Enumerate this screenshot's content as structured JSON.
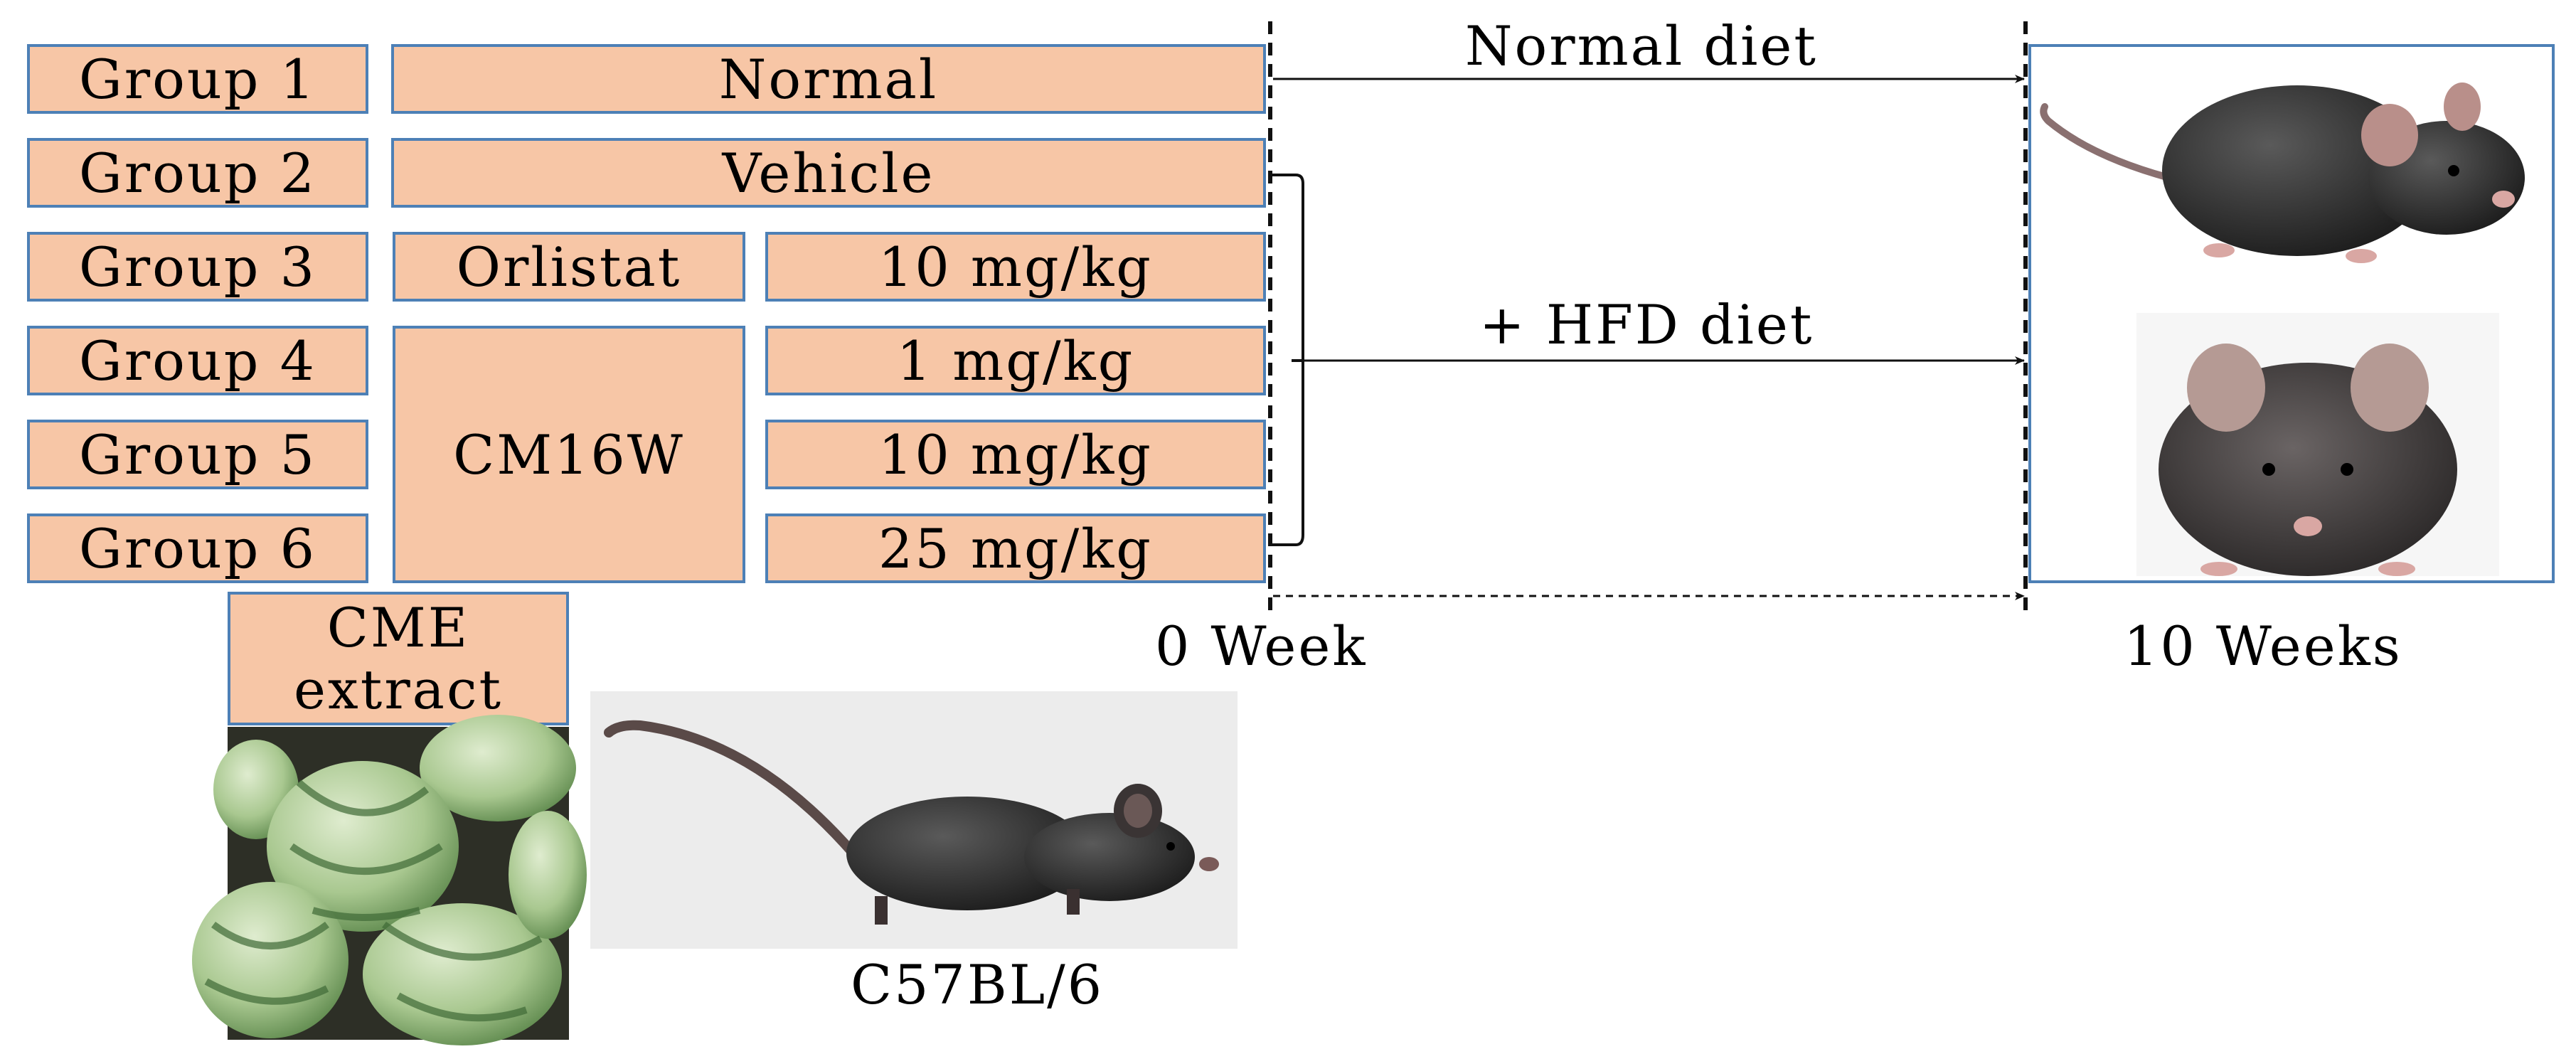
{
  "groups": [
    "Group 1",
    "Group 2",
    "Group 3",
    "Group 4",
    "Group 5",
    "Group 6"
  ],
  "treatments": {
    "normal": "Normal",
    "vehicle": "Vehicle",
    "orlistat": "Orlistat",
    "cm16w": "CM16W"
  },
  "doses": [
    "10 mg/kg",
    "1 mg/kg",
    "10 mg/kg",
    "25 mg/kg"
  ],
  "extract": {
    "line1": "CME",
    "line2": "extract"
  },
  "diet": {
    "normal": "Normal diet",
    "hfd": "+ HFD diet"
  },
  "timeline": {
    "start": "0 Week",
    "end": "10 Weeks"
  },
  "strain": "C57BL/6",
  "colors": {
    "box_fill": "#f7c6a6",
    "box_border": "#4d80b6",
    "arrow": "#111111"
  }
}
